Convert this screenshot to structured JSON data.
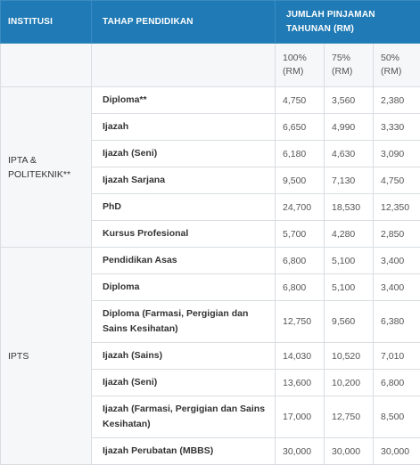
{
  "header": {
    "institusi": "INSTITUSI",
    "tahap": "TAHAP PENDIDIKAN",
    "jumlah": "JUMLAH PINJAMAN TAHUNAN (RM)"
  },
  "subheader": {
    "p100": "100% (RM)",
    "p75": "75% (RM)",
    "p50": "50% (RM)"
  },
  "groups": [
    {
      "institution": "IPTA & POLITEKNIK**",
      "rows": [
        {
          "level": "Diploma**",
          "v100": "4,750",
          "v75": "3,560",
          "v50": "2,380"
        },
        {
          "level": "Ijazah",
          "v100": "6,650",
          "v75": "4,990",
          "v50": "3,330"
        },
        {
          "level": "Ijazah (Seni)",
          "v100": "6,180",
          "v75": "4,630",
          "v50": "3,090"
        },
        {
          "level": "Ijazah Sarjana",
          "v100": "9,500",
          "v75": "7,130",
          "v50": "4,750"
        },
        {
          "level": "PhD",
          "v100": "24,700",
          "v75": "18,530",
          "v50": "12,350"
        },
        {
          "level": "Kursus Profesional",
          "v100": "5,700",
          "v75": "4,280",
          "v50": "2,850"
        }
      ]
    },
    {
      "institution": "IPTS",
      "rows": [
        {
          "level": "Pendidikan Asas",
          "v100": "6,800",
          "v75": "5,100",
          "v50": "3,400"
        },
        {
          "level": "Diploma",
          "v100": "6,800",
          "v75": "5,100",
          "v50": "3,400"
        },
        {
          "level": "Diploma (Farmasi, Pergigian dan Sains Kesihatan)",
          "v100": "12,750",
          "v75": "9,560",
          "v50": "6,380"
        },
        {
          "level": "Ijazah (Sains)",
          "v100": "14,030",
          "v75": "10,520",
          "v50": "7,010"
        },
        {
          "level": "Ijazah (Seni)",
          "v100": "13,600",
          "v75": "10,200",
          "v50": "6,800"
        },
        {
          "level": "Ijazah (Farmasi, Pergigian dan Sains Kesihatan)",
          "v100": "17,000",
          "v75": "12,750",
          "v50": "8,500"
        },
        {
          "level": "Ijazah Perubatan (MBBS)",
          "v100": "30,000",
          "v75": "30,000",
          "v50": "30,000"
        }
      ]
    }
  ]
}
